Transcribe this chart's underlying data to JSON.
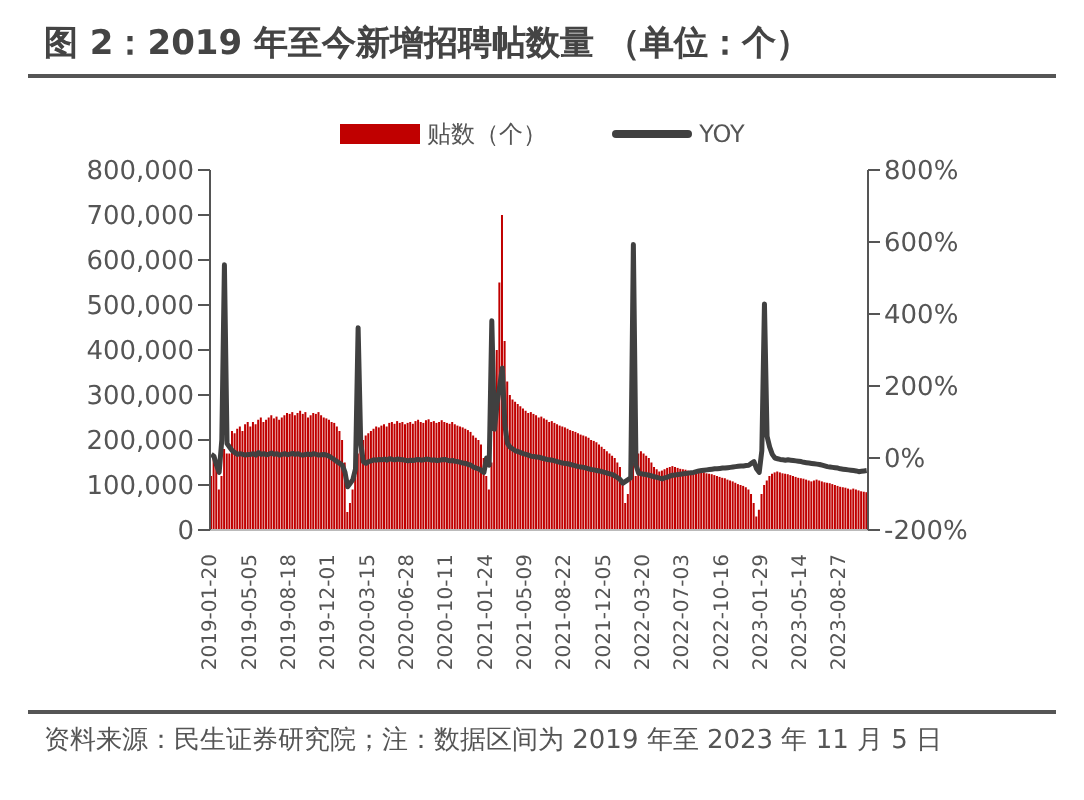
{
  "chart_data": {
    "type": "bar",
    "title": "图 2：2019 年至今新增招聘帖数量 （单位：个）",
    "annotations": [
      "资料来源：民生证券研究院；注：数据区间为 2019 年至 2023 年 11 月 5 日"
    ],
    "legend": "top",
    "categories": [
      "2019-01-20",
      null,
      null,
      null,
      null,
      null,
      null,
      null,
      null,
      null,
      null,
      null,
      null,
      null,
      null,
      "2019-05-05",
      null,
      null,
      null,
      null,
      null,
      null,
      null,
      null,
      null,
      null,
      null,
      null,
      null,
      null,
      "2019-08-18",
      null,
      null,
      null,
      null,
      null,
      null,
      null,
      null,
      null,
      null,
      null,
      null,
      null,
      null,
      "2019-12-01",
      null,
      null,
      null,
      null,
      null,
      null,
      null,
      null,
      null,
      null,
      null,
      null,
      null,
      null,
      "2020-03-15",
      null,
      null,
      null,
      null,
      null,
      null,
      null,
      null,
      null,
      null,
      null,
      null,
      null,
      null,
      "2020-06-28",
      null,
      null,
      null,
      null,
      null,
      null,
      null,
      null,
      null,
      null,
      null,
      null,
      null,
      null,
      "2020-10-11",
      null,
      null,
      null,
      null,
      null,
      null,
      null,
      null,
      null,
      null,
      null,
      null,
      null,
      null,
      "2021-01-24",
      null,
      null,
      null,
      null,
      null,
      null,
      null,
      null,
      null,
      null,
      null,
      null,
      null,
      null,
      "2021-05-09",
      null,
      null,
      null,
      null,
      null,
      null,
      null,
      null,
      null,
      null,
      null,
      null,
      null,
      null,
      "2021-08-22",
      null,
      null,
      null,
      null,
      null,
      null,
      null,
      null,
      null,
      null,
      null,
      null,
      null,
      null,
      "2021-12-05",
      null,
      null,
      null,
      null,
      null,
      null,
      null,
      null,
      null,
      null,
      null,
      null,
      null,
      null,
      "2022-03-20",
      null,
      null,
      null,
      null,
      null,
      null,
      null,
      null,
      null,
      null,
      null,
      null,
      null,
      null,
      "2022-07-03",
      null,
      null,
      null,
      null,
      null,
      null,
      null,
      null,
      null,
      null,
      null,
      null,
      null,
      null,
      "2022-10-16",
      null,
      null,
      null,
      null,
      null,
      null,
      null,
      null,
      null,
      null,
      null,
      null,
      null,
      null,
      "2023-01-29",
      null,
      null,
      null,
      null,
      null,
      null,
      null,
      null,
      null,
      null,
      null,
      null,
      null,
      null,
      "2023-05-14",
      null,
      null,
      null,
      null,
      null,
      null,
      null,
      null,
      null,
      null,
      null,
      null,
      null,
      null,
      "2023-08-27",
      null,
      null,
      null,
      null,
      null,
      null,
      null,
      null,
      null,
      null
    ],
    "series": [
      {
        "name": "贴数（个）",
        "color": "#c00000",
        "values": [
          120000,
          160000,
          140000,
          90000,
          120000,
          180000,
          170000,
          170000,
          220000,
          215000,
          225000,
          230000,
          220000,
          235000,
          240000,
          230000,
          240000,
          235000,
          245000,
          250000,
          240000,
          245000,
          250000,
          255000,
          248000,
          252000,
          245000,
          250000,
          255000,
          260000,
          258000,
          262000,
          255000,
          260000,
          265000,
          258000,
          262000,
          250000,
          255000,
          260000,
          258000,
          262000,
          255000,
          250000,
          248000,
          245000,
          240000,
          238000,
          230000,
          220000,
          200000,
          150000,
          40000,
          60000,
          90000,
          120000,
          170000,
          190000,
          200000,
          210000,
          215000,
          220000,
          225000,
          230000,
          228000,
          232000,
          235000,
          230000,
          238000,
          240000,
          236000,
          242000,
          238000,
          240000,
          235000,
          238000,
          240000,
          236000,
          242000,
          245000,
          240000,
          238000,
          244000,
          246000,
          240000,
          242000,
          238000,
          240000,
          244000,
          240000,
          238000,
          236000,
          240000,
          235000,
          232000,
          230000,
          228000,
          225000,
          222000,
          218000,
          210000,
          205000,
          200000,
          190000,
          160000,
          120000,
          90000,
          150000,
          230000,
          400000,
          550000,
          700000,
          420000,
          330000,
          300000,
          290000,
          285000,
          280000,
          275000,
          270000,
          265000,
          260000,
          262000,
          258000,
          255000,
          250000,
          252000,
          248000,
          245000,
          240000,
          242000,
          238000,
          235000,
          232000,
          230000,
          228000,
          225000,
          222000,
          220000,
          218000,
          215000,
          212000,
          210000,
          208000,
          205000,
          200000,
          198000,
          195000,
          190000,
          185000,
          180000,
          175000,
          170000,
          165000,
          160000,
          150000,
          140000,
          100000,
          60000,
          80000,
          120000,
          150000,
          120000,
          170000,
          175000,
          170000,
          165000,
          160000,
          150000,
          140000,
          135000,
          130000,
          132000,
          135000,
          138000,
          140000,
          142000,
          140000,
          138000,
          136000,
          135000,
          134000,
          132000,
          130000,
          128000,
          130000,
          132000,
          130000,
          128000,
          126000,
          125000,
          124000,
          122000,
          120000,
          118000,
          116000,
          115000,
          112000,
          110000,
          108000,
          105000,
          102000,
          100000,
          98000,
          95000,
          90000,
          80000,
          60000,
          30000,
          45000,
          80000,
          100000,
          110000,
          120000,
          125000,
          128000,
          130000,
          128000,
          126000,
          125000,
          124000,
          122000,
          120000,
          118000,
          116000,
          115000,
          114000,
          112000,
          110000,
          108000,
          110000,
          112000,
          110000,
          108000,
          106000,
          105000,
          104000,
          102000,
          100000,
          98000,
          96000,
          95000,
          94000,
          92000,
          90000,
          92000,
          90000,
          88000,
          86000,
          85000,
          84000
        ]
      },
      {
        "name": "YOY",
        "type": "line",
        "axis": "y2",
        "color": "#404040",
        "values": [
          10,
          5,
          -20,
          -40,
          50,
          537,
          40,
          30,
          20,
          15,
          10,
          12,
          10,
          8,
          10,
          10,
          12,
          8,
          15,
          10,
          12,
          9,
          11,
          14,
          10,
          12,
          8,
          10,
          12,
          9,
          11,
          13,
          10,
          12,
          9,
          8,
          10,
          11,
          9,
          12,
          10,
          8,
          9,
          10,
          8,
          5,
          0,
          -5,
          -10,
          -15,
          -20,
          -40,
          -80,
          -70,
          -60,
          -30,
          362,
          40,
          -10,
          -15,
          -10,
          -8,
          -5,
          -6,
          -4,
          -5,
          -3,
          -6,
          -2,
          -4,
          -5,
          -3,
          -4,
          -5,
          -6,
          -8,
          -6,
          -7,
          -5,
          -4,
          -6,
          -5,
          -3,
          -4,
          -6,
          -5,
          -7,
          -6,
          -5,
          -4,
          -6,
          -8,
          -7,
          -9,
          -10,
          -12,
          -14,
          -15,
          -18,
          -20,
          -25,
          -28,
          -30,
          -35,
          -40,
          0,
          -20,
          381,
          80,
          150,
          200,
          250,
          90,
          40,
          30,
          25,
          20,
          18,
          15,
          12,
          10,
          8,
          5,
          4,
          3,
          2,
          0,
          -2,
          -4,
          -5,
          -6,
          -8,
          -10,
          -12,
          -14,
          -15,
          -16,
          -18,
          -20,
          -22,
          -24,
          -25,
          -26,
          -28,
          -30,
          -32,
          -33,
          -35,
          -36,
          -38,
          -40,
          -42,
          -44,
          -46,
          -50,
          -55,
          -60,
          -70,
          -65,
          -60,
          -55,
          593,
          -20,
          -42,
          -44,
          -45,
          -46,
          -48,
          -50,
          -52,
          -54,
          -56,
          -58,
          -55,
          -53,
          -50,
          -48,
          -47,
          -46,
          -45,
          -44,
          -43,
          -42,
          -41,
          -40,
          -38,
          -36,
          -35,
          -34,
          -33,
          -32,
          -31,
          -30,
          -30,
          -29,
          -28,
          -28,
          -27,
          -26,
          -25,
          -24,
          -23,
          -22,
          -22,
          -21,
          -20,
          -15,
          -10,
          -30,
          -40,
          20,
          428,
          60,
          30,
          10,
          0,
          -2,
          -4,
          -5,
          -6,
          -5,
          -6,
          -7,
          -8,
          -9,
          -10,
          -12,
          -13,
          -14,
          -15,
          -16,
          -17,
          -18,
          -20,
          -22,
          -24,
          -25,
          -26,
          -27,
          -28,
          -30,
          -31,
          -32,
          -33,
          -34,
          -35,
          -36,
          -38,
          -37,
          -36,
          -35
        ]
      }
    ],
    "ylim": [
      0,
      800000
    ],
    "yticks": [
      {
        "value": 0,
        "label": "0"
      },
      {
        "value": 100000,
        "label": "100,000"
      },
      {
        "value": 200000,
        "label": "200,000"
      },
      {
        "value": 300000,
        "label": "300,000"
      },
      {
        "value": 400000,
        "label": "400,000"
      },
      {
        "value": 500000,
        "label": "500,000"
      },
      {
        "value": 600000,
        "label": "600,000"
      },
      {
        "value": 700000,
        "label": "700,000"
      },
      {
        "value": 800000,
        "label": "800,000"
      }
    ],
    "y2lim": [
      -200,
      800
    ],
    "y2ticks": [
      {
        "value": -200,
        "label": "-200%"
      },
      {
        "value": 0,
        "label": "0%"
      },
      {
        "value": 200,
        "label": "200%"
      },
      {
        "value": 400,
        "label": "400%"
      },
      {
        "value": 600,
        "label": "600%"
      },
      {
        "value": 800,
        "label": "800%"
      }
    ]
  }
}
